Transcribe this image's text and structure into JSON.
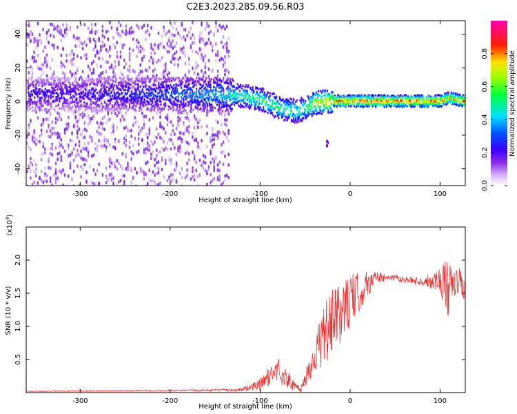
{
  "title": "C2E3.2023.285.09.56.R03",
  "chart_data": [
    {
      "type": "heatmap",
      "xlabel": "Height of straight line (km)",
      "ylabel": "Frequency (Hz)",
      "xlim": [
        -360,
        128
      ],
      "ylim": [
        -50,
        48
      ],
      "xticks": [
        -300,
        -200,
        -100,
        0,
        100
      ],
      "yticks": [
        -40,
        -20,
        0,
        20,
        40
      ],
      "colorbar": {
        "label": "Normalized spectral amplitude",
        "range": [
          0.0,
          1.0
        ],
        "ticks": [
          "0.0",
          "0.2",
          "0.4",
          "0.6",
          "0.8"
        ],
        "colormap": "rainbow (white → purple → blue → cyan → green → yellow → red → magenta)"
      },
      "ridge": {
        "description": "frequency of peak spectral amplitude vs height",
        "x": [
          -340,
          -300,
          -250,
          -200,
          -150,
          -120,
          -100,
          -80,
          -60,
          -50,
          -40,
          -20,
          0,
          50,
          100,
          110,
          125
        ],
        "y": [
          5,
          5,
          5,
          5,
          5,
          4,
          2,
          -3,
          -5,
          -3,
          0,
          1,
          1,
          1,
          1,
          3,
          1
        ],
        "amplitude": [
          0.25,
          0.25,
          0.3,
          0.35,
          0.45,
          0.55,
          0.6,
          0.6,
          0.55,
          0.6,
          0.75,
          0.85,
          0.9,
          0.9,
          0.9,
          0.8,
          0.9
        ]
      },
      "scatter_region_x": [
        -360,
        -135
      ],
      "isolated_feature": {
        "x": -27,
        "y": -24
      }
    },
    {
      "type": "line",
      "xlabel": "Height of straight line (km)",
      "ylabel": "SNR (10 * v/v)",
      "y_multiplier": "(x10",
      "y_multiplier_exp": "4",
      "y_multiplier_close": ")",
      "xlim": [
        -360,
        128
      ],
      "ylim": [
        0,
        2.5
      ],
      "xticks": [
        -300,
        -200,
        -100,
        0,
        100
      ],
      "yticks": [
        "0.5",
        "1.0",
        "1.5",
        "2.0"
      ],
      "series": [
        {
          "color": "#ee3333",
          "x": [
            -360,
            -200,
            -125,
            -110,
            -100,
            -90,
            -80,
            -70,
            -60,
            -55,
            -50,
            -40,
            -30,
            -20,
            -10,
            0,
            10,
            20,
            30,
            40,
            50,
            60,
            80,
            100,
            105,
            110,
            115,
            120,
            128
          ],
          "y": [
            0.02,
            0.03,
            0.04,
            0.08,
            0.12,
            0.25,
            0.35,
            0.2,
            0.08,
            0.05,
            0.2,
            0.55,
            0.85,
            1.05,
            1.2,
            1.4,
            1.5,
            1.65,
            1.75,
            1.72,
            1.75,
            1.7,
            1.68,
            1.7,
            1.65,
            1.5,
            1.6,
            1.7,
            1.55
          ],
          "noise": [
            0.005,
            0.01,
            0.02,
            0.05,
            0.1,
            0.15,
            0.2,
            0.15,
            0.05,
            0.05,
            0.15,
            0.3,
            0.45,
            0.5,
            0.45,
            0.4,
            0.3,
            0.2,
            0.1,
            0.05,
            0.05,
            0.05,
            0.06,
            0.2,
            0.35,
            0.45,
            0.3,
            0.2,
            0.25
          ]
        }
      ]
    }
  ]
}
